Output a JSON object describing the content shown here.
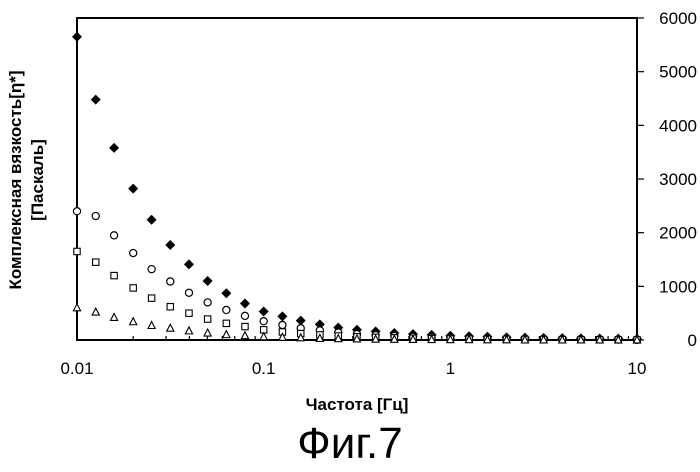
{
  "caption": "Фиг.7",
  "chart_data": {
    "type": "scatter",
    "xlabel": "Частота [Гц]",
    "ylabel": [
      "Комплексная вязкость[η*]",
      "[Паскаль]"
    ],
    "x_scale": "log",
    "xlim": [
      0.01,
      10
    ],
    "ylim": [
      0,
      6000
    ],
    "x_ticks": [
      0.01,
      0.1,
      1,
      10
    ],
    "x_tick_labels": [
      "0.01",
      "0.1",
      "1",
      "10"
    ],
    "y_ticks": [
      0,
      1000,
      2000,
      3000,
      4000,
      5000,
      6000
    ],
    "y_tick_labels": [
      "0",
      "1000",
      "2000",
      "3000",
      "4000",
      "5000",
      "6000"
    ],
    "y_axis_side": "right",
    "grid": false,
    "x": [
      0.01,
      0.0126,
      0.0158,
      0.02,
      0.0251,
      0.0316,
      0.0398,
      0.0501,
      0.0631,
      0.0794,
      0.1,
      0.126,
      0.158,
      0.2,
      0.251,
      0.316,
      0.398,
      0.501,
      0.631,
      0.794,
      1,
      1.26,
      1.58,
      2,
      2.51,
      3.16,
      3.98,
      5.01,
      6.31,
      7.94,
      10
    ],
    "series": [
      {
        "marker": "diamond-filled",
        "values": [
          5650,
          4480,
          3580,
          2820,
          2240,
          1770,
          1410,
          1100,
          870,
          680,
          530,
          440,
          360,
          290,
          230,
          190,
          160,
          130,
          110,
          95,
          80,
          70,
          60,
          50,
          45,
          40,
          35,
          30,
          28,
          25,
          20
        ]
      },
      {
        "marker": "circle-open",
        "values": [
          2400,
          2310,
          1950,
          1620,
          1320,
          1090,
          880,
          700,
          560,
          450,
          350,
          280,
          220,
          180,
          140,
          110,
          90,
          75,
          60,
          50,
          40,
          35,
          30,
          25,
          20,
          18,
          15,
          12,
          10,
          8,
          5
        ]
      },
      {
        "marker": "square-open",
        "values": [
          1650,
          1450,
          1200,
          970,
          780,
          620,
          500,
          390,
          310,
          250,
          190,
          150,
          120,
          95,
          75,
          60,
          50,
          40,
          32,
          26,
          20,
          17,
          14,
          12,
          10,
          8,
          6,
          5,
          4,
          3,
          2
        ]
      },
      {
        "marker": "triangle-open",
        "values": [
          600,
          520,
          420,
          340,
          270,
          220,
          170,
          130,
          100,
          80,
          60,
          50,
          40,
          30,
          25,
          20,
          15,
          12,
          10,
          8,
          6,
          5,
          4,
          3,
          2,
          2,
          1,
          1,
          1,
          1,
          1
        ]
      }
    ]
  }
}
